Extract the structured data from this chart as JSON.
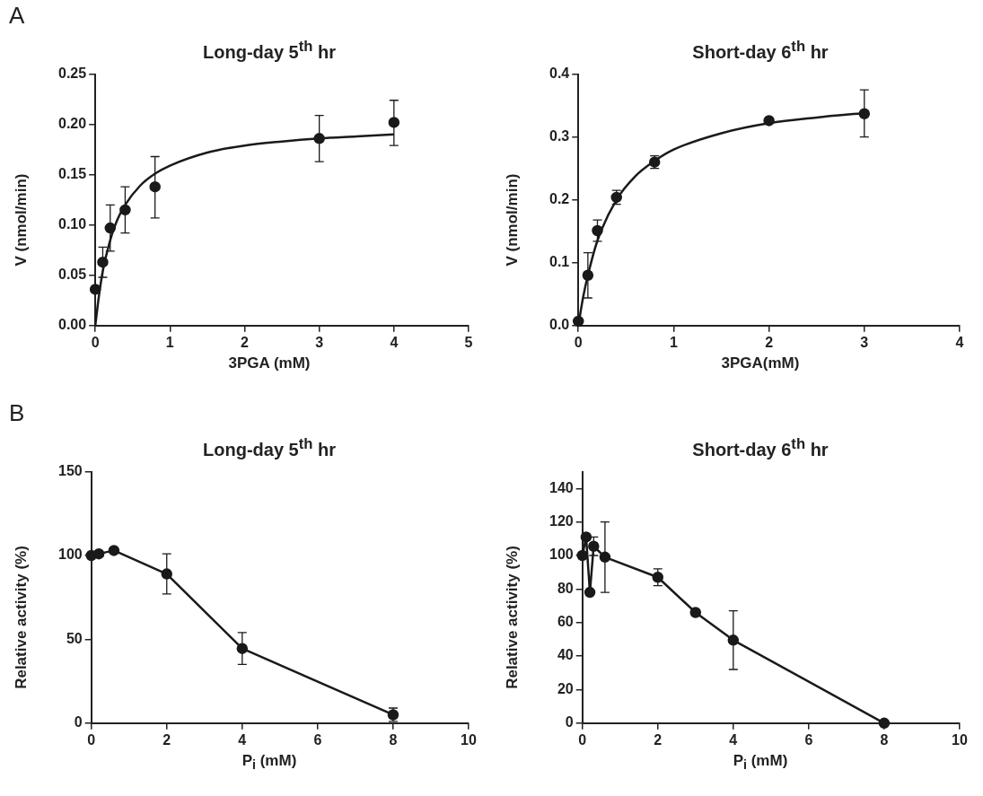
{
  "chart_data": [
    {
      "type": "scatter",
      "title": "Long-day 5$^{th}$ hr",
      "xlabel": "3PGA (mM)",
      "ylabel": "V (nmol/min)",
      "annotations": [
        "A"
      ],
      "xlim": [
        0,
        5
      ],
      "xticks": [
        0,
        1,
        2,
        3,
        4,
        5
      ],
      "ylim": [
        0,
        0.25
      ],
      "yticks": [
        {
          "value": 0,
          "label": "0.00"
        },
        {
          "value": 0.05,
          "label": "0.05"
        },
        {
          "value": 0.1,
          "label": "0.10"
        },
        {
          "value": 0.15,
          "label": "0.15"
        },
        {
          "value": 0.2,
          "label": "0.20"
        },
        {
          "value": 0.25,
          "label": "0.25"
        }
      ],
      "series": [
        {
          "marker": "circle",
          "color": "#1a1a1a",
          "x": [
            0,
            0.1,
            0.2,
            0.4,
            0.8,
            3,
            4
          ],
          "values": [
            0.036,
            0.063,
            0.097,
            0.115,
            0.138,
            0.186,
            0.202
          ],
          "errors": [
            null,
            [
              0.048,
              0.078
            ],
            [
              0.074,
              0.12
            ],
            [
              0.092,
              0.138
            ],
            [
              0.107,
              0.168
            ],
            [
              0.163,
              0.209
            ],
            [
              0.179,
              0.224
            ]
          ]
        },
        {
          "type": "line",
          "marker": "none",
          "color": "#1a1a1a",
          "x": [
            0,
            0.05,
            0.1,
            0.2,
            0.3,
            0.4,
            0.6,
            0.8,
            1,
            1.5,
            2,
            2.5,
            3,
            3.5,
            4
          ],
          "values": [
            0,
            0.03,
            0.054,
            0.085,
            0.106,
            0.12,
            0.139,
            0.151,
            0.159,
            0.172,
            0.179,
            0.183,
            0.186,
            0.188,
            0.19
          ]
        }
      ]
    },
    {
      "type": "scatter",
      "title": "Short-day 6$^{th}$ hr",
      "xlabel": "3PGA(mM)",
      "ylabel": "V (nmol/min)",
      "xlim": [
        0,
        4
      ],
      "xticks": [
        0,
        1,
        2,
        3,
        4
      ],
      "ylim": [
        0,
        0.4
      ],
      "yticks": [
        {
          "value": 0,
          "label": "0.0"
        },
        {
          "value": 0.1,
          "label": "0.1"
        },
        {
          "value": 0.2,
          "label": "0.2"
        },
        {
          "value": 0.3,
          "label": "0.3"
        },
        {
          "value": 0.4,
          "label": "0.4"
        }
      ],
      "series": [
        {
          "marker": "circle",
          "color": "#1a1a1a",
          "x": [
            0,
            0.1,
            0.2,
            0.4,
            0.8,
            2,
            3
          ],
          "values": [
            0.007,
            0.08,
            0.151,
            0.204,
            0.26,
            0.326,
            0.337
          ],
          "errors": [
            null,
            [
              0.044,
              0.116
            ],
            [
              0.134,
              0.168
            ],
            [
              0.193,
              0.215
            ],
            [
              0.25,
              0.27
            ],
            null,
            [
              0.3,
              0.375
            ]
          ]
        },
        {
          "type": "line",
          "marker": "none",
          "color": "#1a1a1a",
          "x": [
            0,
            0.05,
            0.1,
            0.2,
            0.4,
            0.6,
            0.8,
            1,
            1.5,
            2,
            2.5,
            3
          ],
          "values": [
            0,
            0.045,
            0.08,
            0.135,
            0.2,
            0.238,
            0.262,
            0.28,
            0.306,
            0.322,
            0.331,
            0.338
          ]
        }
      ]
    },
    {
      "type": "line",
      "title": "Long-day 5$^{th}$ hr",
      "xlabel": "P$_{i}$ (mM)",
      "ylabel": "Relative activity (%)",
      "annotations": [
        "B"
      ],
      "xlim": [
        0,
        10
      ],
      "xticks": [
        0,
        2,
        4,
        6,
        8,
        10
      ],
      "ylim": [
        0,
        150
      ],
      "yticks": [
        0,
        50,
        100,
        150
      ],
      "series": [
        {
          "marker": "circle",
          "color": "#1a1a1a",
          "x": [
            0,
            0.2,
            0.6,
            2,
            4,
            8
          ],
          "values": [
            100,
            101,
            103,
            89,
            44.5,
            5
          ],
          "errors": [
            null,
            null,
            null,
            [
              77,
              101
            ],
            [
              35,
              54
            ],
            [
              1,
              9
            ]
          ]
        }
      ]
    },
    {
      "type": "line",
      "title": "Short-day 6$^{th}$ hr",
      "xlabel": "P$_{i}$ (mM)",
      "ylabel": "Relative activity (%)",
      "xlim": [
        0,
        10
      ],
      "xticks": [
        0,
        2,
        4,
        6,
        8,
        10
      ],
      "ylim": [
        0,
        150
      ],
      "yticks": [
        0,
        20,
        40,
        60,
        80,
        100,
        120,
        140
      ],
      "series": [
        {
          "marker": "circle",
          "color": "#1a1a1a",
          "x": [
            0,
            0.1,
            0.2,
            0.3,
            0.6,
            2,
            3,
            4,
            8
          ],
          "values": [
            100,
            111,
            78,
            105.5,
            99,
            87,
            66,
            49.5,
            0
          ],
          "errors": [
            null,
            null,
            null,
            [
              100,
              111
            ],
            [
              78,
              120
            ],
            [
              82,
              92
            ],
            null,
            [
              32,
              67
            ],
            null
          ]
        }
      ]
    }
  ]
}
